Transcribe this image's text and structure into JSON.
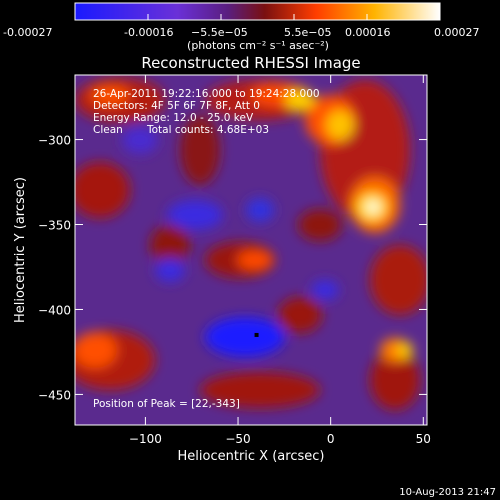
{
  "colorbar": {
    "tick_labels": [
      "-0.00027",
      "-0.00016",
      "−5.5e−05",
      "5.5e−05",
      "0.00016",
      "0.00027"
    ],
    "unit_label": "(photons cm⁻² s⁻¹ asec⁻²)",
    "colors": [
      "#2020ff",
      "#7a2bd0",
      "#b0201a",
      "#ff5a00",
      "#ffd200",
      "#ffffff"
    ]
  },
  "chart_data": {
    "type": "heatmap",
    "title": "Reconstructed RHESSI Image",
    "xlabel": "Heliocentric X (arcsec)",
    "ylabel": "Heliocentric Y (arcsec)",
    "xlim": [
      -138,
      52
    ],
    "ylim": [
      -468,
      -262
    ],
    "x_ticks": [
      -100,
      -50,
      0,
      50
    ],
    "y_ticks": [
      -300,
      -350,
      -400,
      -450
    ],
    "annotations": {
      "time_range": "26-Apr-2011 19:22:16.000 to 19:24:28.000",
      "detectors": "Detectors: 4F 5F 6F 7F 8F, Att 0",
      "energy_range": "Energy Range: 12.0 - 25.0 keV",
      "method": "Clean",
      "total_counts": "Total counts: 4.68E+03",
      "peak": "Position of Peak = [22,-343]"
    },
    "peak": {
      "x": 22,
      "y": -343
    },
    "min_marker": {
      "x": -40,
      "y": -415
    }
  },
  "footer": {
    "timestamp": "10-Aug-2013 21:47"
  }
}
